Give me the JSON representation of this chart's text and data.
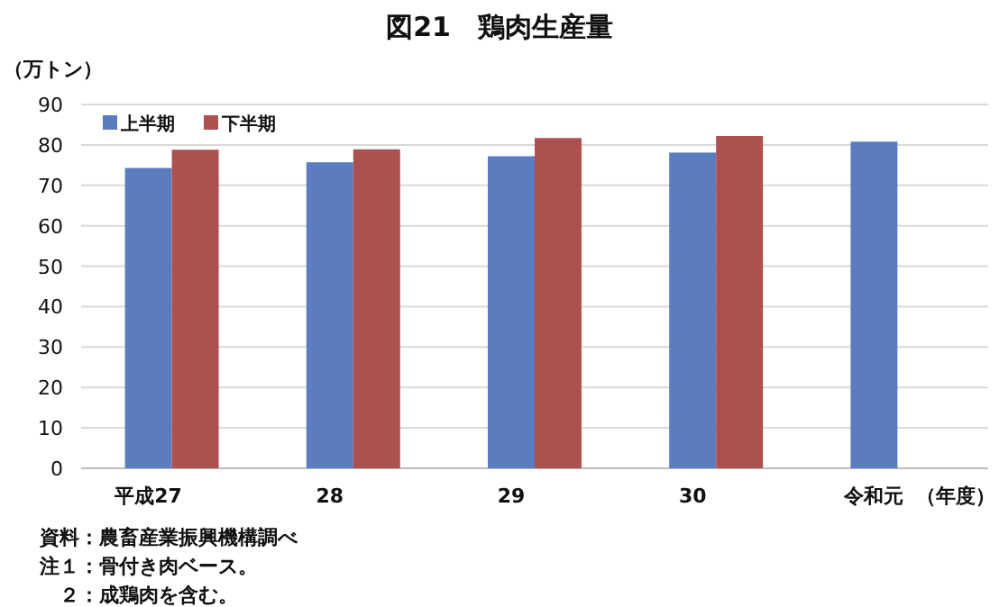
{
  "chart_data": {
    "type": "bar",
    "title": "図21　鶏肉生産量",
    "ylabel": "（万トン）",
    "xlabel": "（年度）",
    "categories": [
      "平成27",
      "28",
      "29",
      "30",
      "令和元"
    ],
    "series": [
      {
        "name": "上半期",
        "color": "#5b7dbf",
        "values": [
          74.3,
          75.7,
          77.2,
          78.1,
          80.8
        ]
      },
      {
        "name": "下半期",
        "color": "#ad5150",
        "values": [
          78.8,
          78.9,
          81.7,
          82.2,
          null
        ]
      }
    ],
    "ylim": [
      0,
      90
    ],
    "yticks": [
      0,
      10,
      20,
      30,
      40,
      50,
      60,
      70,
      80,
      90
    ],
    "grid": "y",
    "legend": "top left",
    "annotations": [
      "資料：農畜産業振興機構調べ",
      "注１：骨付き肉ベース。",
      "　２：成鶏肉を含む。"
    ]
  }
}
